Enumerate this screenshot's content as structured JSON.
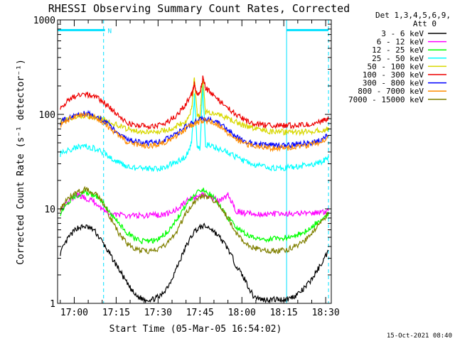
{
  "chart_data": {
    "type": "line",
    "title": "RHESSI Observing Summary Count Rates, Corrected",
    "xlabel": "Start Time (05-Mar-05 16:54:02)",
    "ylabel": "Corrected Count Rate (s⁻¹ detector⁻¹)",
    "y_scale": "log",
    "ylim": [
      1,
      1000
    ],
    "xlim": [
      "16:54:02",
      "18:32:00"
    ],
    "x_ticks": [
      "17:00",
      "17:15",
      "17:30",
      "17:45",
      "18:00",
      "18:15",
      "18:30"
    ],
    "y_ticks": [
      "1",
      "10",
      "100",
      "1000"
    ],
    "footer_date": "15-Oct-2021 08:40",
    "legend_header": [
      "Det 1,3,4,5,6,9,",
      "Att 0"
    ],
    "annotations": [
      {
        "type": "bar",
        "label": "N",
        "x_start": "16:54:02",
        "x_end": "17:11:00",
        "y": 780
      },
      {
        "type": "bar",
        "label": "",
        "x_start": "18:16:00",
        "x_end": "18:31:00",
        "y": 780
      },
      {
        "type": "vline",
        "x": "17:10:30",
        "style": "dashed"
      },
      {
        "type": "vline",
        "x": "18:31:00",
        "style": "dashed"
      },
      {
        "type": "vline",
        "x": "18:16:00",
        "style": "solid"
      }
    ],
    "series": [
      {
        "name": "3 - 6 keV",
        "color": "#000000",
        "x": [
          "16:55",
          "16:58",
          "17:01",
          "17:04",
          "17:07",
          "17:10",
          "17:13",
          "17:16",
          "17:19",
          "17:22",
          "17:25",
          "17:28",
          "17:31",
          "17:34",
          "17:37",
          "17:40",
          "17:43",
          "17:46",
          "17:49",
          "17:52",
          "17:55",
          "17:58",
          "18:01",
          "18:04",
          "18:07",
          "18:10",
          "18:13",
          "18:16",
          "18:19",
          "18:22",
          "18:25",
          "18:28",
          "18:31"
        ],
        "y": [
          3.4,
          5,
          6.3,
          6.5,
          6,
          4.5,
          3.2,
          2.3,
          1.6,
          1.2,
          1.1,
          1.1,
          1.2,
          1.6,
          2.5,
          4,
          5.8,
          6.6,
          6.2,
          5,
          3.8,
          2.5,
          1.8,
          1.2,
          1.1,
          1.1,
          1.1,
          1.1,
          1.2,
          1.4,
          1.8,
          2.5,
          3.6
        ]
      },
      {
        "name": "6 - 12 keV",
        "color": "#ff00ff",
        "x": [
          "16:55",
          "16:58",
          "17:01",
          "17:04",
          "17:07",
          "17:10",
          "17:13",
          "17:16",
          "17:19",
          "17:22",
          "17:25",
          "17:28",
          "17:31",
          "17:34",
          "17:37",
          "17:40",
          "17:43",
          "17:46",
          "17:49",
          "17:52",
          "17:55",
          "17:58",
          "18:01",
          "18:04",
          "18:07",
          "18:10",
          "18:13",
          "18:16",
          "18:19",
          "18:22",
          "18:25",
          "18:28",
          "18:31"
        ],
        "y": [
          10,
          12,
          14,
          13,
          12,
          10,
          9,
          8.6,
          8.5,
          8.5,
          8.5,
          8.6,
          8.6,
          9,
          10,
          12,
          13,
          14,
          13.5,
          12,
          14,
          9.5,
          9,
          9,
          8.8,
          8.8,
          8.8,
          8.8,
          8.8,
          9,
          9,
          9.2,
          9.5
        ]
      },
      {
        "name": "12 - 25 keV",
        "color": "#00ff00",
        "x": [
          "16:55",
          "16:58",
          "17:01",
          "17:04",
          "17:07",
          "17:10",
          "17:13",
          "17:16",
          "17:19",
          "17:22",
          "17:25",
          "17:28",
          "17:31",
          "17:34",
          "17:37",
          "17:40",
          "17:43",
          "17:46",
          "17:49",
          "17:52",
          "17:55",
          "17:58",
          "18:01",
          "18:04",
          "18:07",
          "18:10",
          "18:13",
          "18:16",
          "18:19",
          "18:22",
          "18:25",
          "18:28",
          "18:31"
        ],
        "y": [
          9,
          12,
          14,
          15,
          14,
          12,
          9,
          7,
          5.5,
          4.8,
          4.5,
          4.6,
          5,
          6,
          8,
          11,
          14,
          16,
          14,
          11,
          8,
          6.5,
          5.5,
          5,
          4.8,
          4.8,
          4.8,
          5,
          5.2,
          5.6,
          6.5,
          7.5,
          9
        ]
      },
      {
        "name": "25 - 50 keV",
        "color": "#00ffff",
        "x": [
          "16:55",
          "16:58",
          "17:01",
          "17:04",
          "17:07",
          "17:10",
          "17:13",
          "17:16",
          "17:19",
          "17:22",
          "17:25",
          "17:28",
          "17:31",
          "17:34",
          "17:37",
          "17:40",
          "17:42",
          "17:43",
          "17:44",
          "17:45",
          "17:46",
          "17:47",
          "17:50",
          "17:53",
          "17:56",
          "17:59",
          "18:02",
          "18:05",
          "18:08",
          "18:11",
          "18:14",
          "18:17",
          "18:20",
          "18:23",
          "18:26",
          "18:29",
          "18:31"
        ],
        "y": [
          38,
          42,
          45,
          46,
          44,
          40,
          35,
          31,
          28,
          27,
          26.5,
          26.5,
          27,
          29,
          32,
          36,
          50,
          160,
          45,
          42,
          200,
          48,
          45,
          42,
          38,
          34,
          31,
          29,
          28,
          27,
          27,
          27.5,
          28,
          29,
          30,
          32,
          35
        ]
      },
      {
        "name": "50 - 100 keV",
        "color": "#d8d800",
        "x": [
          "16:55",
          "16:58",
          "17:01",
          "17:04",
          "17:07",
          "17:10",
          "17:13",
          "17:16",
          "17:19",
          "17:22",
          "17:25",
          "17:28",
          "17:31",
          "17:34",
          "17:37",
          "17:40",
          "17:42",
          "17:43",
          "17:44",
          "17:45",
          "17:46",
          "17:47",
          "17:50",
          "17:53",
          "17:56",
          "17:59",
          "18:02",
          "18:05",
          "18:08",
          "18:11",
          "18:14",
          "18:17",
          "18:20",
          "18:23",
          "18:26",
          "18:29",
          "18:31"
        ],
        "y": [
          82,
          90,
          96,
          98,
          95,
          90,
          82,
          76,
          70,
          67,
          66,
          66,
          67,
          70,
          76,
          85,
          110,
          250,
          100,
          95,
          240,
          105,
          100,
          95,
          88,
          80,
          74,
          70,
          67,
          66,
          65,
          65,
          65,
          66,
          67,
          68,
          70
        ]
      },
      {
        "name": "100 - 300 keV",
        "color": "#ee0000",
        "x": [
          "16:55",
          "16:58",
          "17:01",
          "17:04",
          "17:07",
          "17:10",
          "17:13",
          "17:16",
          "17:19",
          "17:22",
          "17:25",
          "17:28",
          "17:31",
          "17:34",
          "17:37",
          "17:40",
          "17:42",
          "17:43",
          "17:44",
          "17:45",
          "17:46",
          "17:47",
          "17:50",
          "17:53",
          "17:56",
          "17:59",
          "18:02",
          "18:05",
          "18:08",
          "18:11",
          "18:14",
          "18:17",
          "18:20",
          "18:23",
          "18:26",
          "18:29",
          "18:31"
        ],
        "y": [
          120,
          140,
          160,
          165,
          155,
          140,
          115,
          95,
          82,
          77,
          75,
          75,
          77,
          85,
          100,
          130,
          160,
          210,
          160,
          170,
          240,
          190,
          160,
          130,
          110,
          95,
          85,
          80,
          77,
          76,
          76,
          76,
          77,
          78,
          80,
          85,
          90
        ]
      },
      {
        "name": "300 - 800 keV",
        "color": "#0000ff",
        "x": [
          "16:55",
          "16:58",
          "17:01",
          "17:04",
          "17:07",
          "17:10",
          "17:13",
          "17:16",
          "17:19",
          "17:22",
          "17:25",
          "17:28",
          "17:31",
          "17:34",
          "17:37",
          "17:40",
          "17:43",
          "17:46",
          "17:49",
          "17:52",
          "17:55",
          "17:58",
          "18:01",
          "18:04",
          "18:07",
          "18:10",
          "18:13",
          "18:16",
          "18:19",
          "18:22",
          "18:25",
          "18:28",
          "18:31"
        ],
        "y": [
          82,
          92,
          100,
          102,
          97,
          88,
          74,
          62,
          55,
          51,
          50,
          50,
          52,
          56,
          63,
          74,
          85,
          90,
          88,
          80,
          68,
          58,
          52,
          49,
          48,
          47,
          47,
          47,
          48,
          49,
          50,
          53,
          60
        ]
      },
      {
        "name": "800 - 7000 keV",
        "color": "#ff8c00",
        "x": [
          "16:55",
          "16:58",
          "17:01",
          "17:04",
          "17:07",
          "17:10",
          "17:13",
          "17:16",
          "17:19",
          "17:22",
          "17:25",
          "17:28",
          "17:31",
          "17:34",
          "17:37",
          "17:40",
          "17:43",
          "17:46",
          "17:49",
          "17:52",
          "17:55",
          "17:58",
          "18:01",
          "18:04",
          "18:07",
          "18:10",
          "18:13",
          "18:16",
          "18:19",
          "18:22",
          "18:25",
          "18:28",
          "18:31"
        ],
        "y": [
          78,
          88,
          96,
          98,
          93,
          84,
          70,
          58,
          51,
          48,
          47,
          47,
          49,
          53,
          60,
          70,
          80,
          86,
          84,
          76,
          64,
          55,
          49,
          46,
          45,
          44,
          44,
          44,
          45,
          46,
          48,
          51,
          58
        ]
      },
      {
        "name": "7000 - 15000 keV",
        "color": "#808000",
        "x": [
          "16:55",
          "16:58",
          "17:01",
          "17:04",
          "17:07",
          "17:10",
          "17:13",
          "17:16",
          "17:19",
          "17:22",
          "17:25",
          "17:28",
          "17:31",
          "17:34",
          "17:37",
          "17:40",
          "17:43",
          "17:46",
          "17:49",
          "17:52",
          "17:55",
          "17:58",
          "18:01",
          "18:04",
          "18:07",
          "18:10",
          "18:13",
          "18:16",
          "18:19",
          "18:22",
          "18:25",
          "18:28",
          "18:31"
        ],
        "y": [
          10,
          13,
          15,
          16,
          15,
          12,
          8,
          5.5,
          4.2,
          3.8,
          3.6,
          3.6,
          3.8,
          4.5,
          6,
          9,
          12,
          14,
          13,
          11,
          8,
          5.5,
          4.2,
          3.9,
          3.7,
          3.6,
          3.6,
          3.7,
          4,
          4.5,
          5.5,
          7,
          9
        ]
      }
    ]
  }
}
